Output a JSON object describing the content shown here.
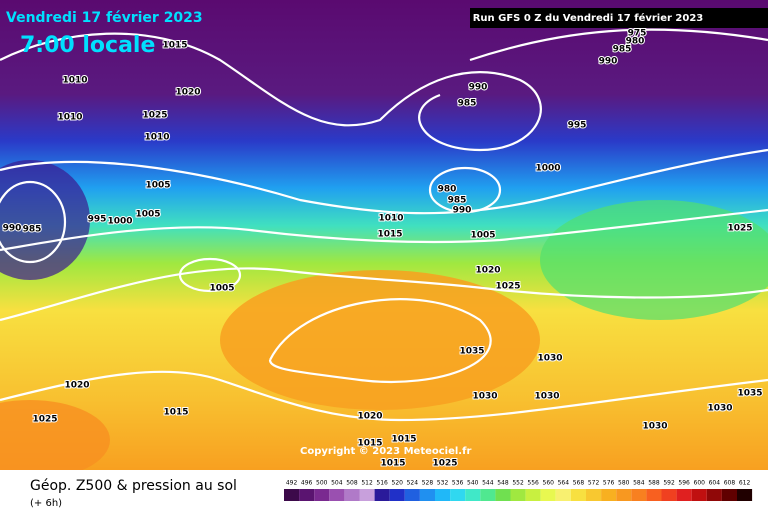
{
  "header": {
    "date": "Vendredi 17 février 2023",
    "time": "7:00 locale",
    "run": "Run GFS 0 Z du Vendredi 17 février 2023"
  },
  "isobar_labels": [
    "1015",
    "1010",
    "1010",
    "1020",
    "1025",
    "1010",
    "990",
    "985",
    "995",
    "1000",
    "980",
    "985",
    "990",
    "1005",
    "1005",
    "995",
    "1000",
    "990",
    "985",
    "1010",
    "1015",
    "1005",
    "1025",
    "1020",
    "1025",
    "1005",
    "1035",
    "1030",
    "1020",
    "1015",
    "1030",
    "1030",
    "1025",
    "1020",
    "1030",
    "1035",
    "1030",
    "1015",
    "1015",
    "1015",
    "1025",
    "975",
    "980",
    "985",
    "990"
  ],
  "copyright": "Copyright © 2023 Meteociel.fr",
  "footer": {
    "title": "Géop. Z500 & pression au sol",
    "lead": "(+ 6h)"
  },
  "scale": {
    "values": [
      492,
      496,
      500,
      504,
      508,
      512,
      516,
      520,
      524,
      528,
      532,
      536,
      540,
      544,
      548,
      552,
      556,
      560,
      564,
      568,
      572,
      576,
      580,
      584,
      588,
      592,
      596,
      600,
      604,
      608,
      612
    ],
    "colors": [
      "#3c0a4a",
      "#5a1470",
      "#7a2a90",
      "#9a50b0",
      "#b07ac8",
      "#c8a0dc",
      "#2a1a9a",
      "#2030c8",
      "#2060e0",
      "#2090f0",
      "#20b8f8",
      "#30d8f0",
      "#40e8c8",
      "#50e890",
      "#70e050",
      "#a0e840",
      "#c8f040",
      "#e8f850",
      "#f8f070",
      "#f8e040",
      "#f8c830",
      "#f8b020",
      "#f89820",
      "#f88020",
      "#f86020",
      "#f04020",
      "#e02020",
      "#c01010",
      "#900808",
      "#600000",
      "#200000"
    ]
  }
}
